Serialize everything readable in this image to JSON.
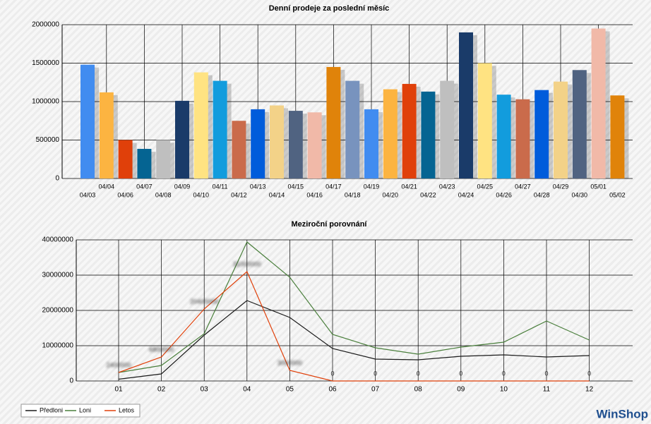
{
  "chart_data": [
    {
      "type": "bar",
      "title": "Denní prodeje za poslední měsíc",
      "categories": [
        "04/03",
        "04/04",
        "04/06",
        "04/07",
        "04/08",
        "04/09",
        "04/10",
        "04/11",
        "04/12",
        "04/13",
        "04/14",
        "04/15",
        "04/16",
        "04/17",
        "04/18",
        "04/19",
        "04/20",
        "04/21",
        "04/22",
        "04/23",
        "04/24",
        "04/25",
        "04/26",
        "04/27",
        "04/28",
        "04/29",
        "04/30",
        "05/01",
        "05/02"
      ],
      "values": [
        1480000,
        1120000,
        500000,
        385000,
        500000,
        1010000,
        1380000,
        1270000,
        750000,
        900000,
        950000,
        880000,
        860000,
        1450000,
        1270000,
        900000,
        1160000,
        1230000,
        1130000,
        1270000,
        1900000,
        1500000,
        1090000,
        1030000,
        1150000,
        1260000,
        1410000,
        1950000,
        1080000
      ],
      "colors": [
        "#418cf0",
        "#fcb441",
        "#e0400a",
        "#056492",
        "#bfbfbf",
        "#1a3b69",
        "#ffe382",
        "#129cdd",
        "#ca6b4b",
        "#005cdb",
        "#f3d288",
        "#506381",
        "#f1b9a8",
        "#e0830a",
        "#7893be"
      ],
      "ylim": [
        0,
        2000000
      ],
      "yticks": [
        0,
        500000,
        1000000,
        1500000,
        2000000
      ],
      "grid": true
    },
    {
      "type": "line",
      "title": "Meziroční porovnání",
      "categories": [
        "01",
        "02",
        "03",
        "04",
        "05",
        "06",
        "07",
        "08",
        "09",
        "10",
        "11",
        "12"
      ],
      "series": [
        {
          "name": "Předloni",
          "color": "#1a1a1a",
          "values": [
            500000,
            2000000,
            13000000,
            22800000,
            18000000,
            9200000,
            6200000,
            6000000,
            7000000,
            7400000,
            6800000,
            7200000
          ]
        },
        {
          "name": "Loni",
          "color": "#4a7f3c",
          "values": [
            2400000,
            4400000,
            13400000,
            39400000,
            29400000,
            13200000,
            9400000,
            7600000,
            9600000,
            11000000,
            17000000,
            11600000
          ]
        },
        {
          "name": "Letos",
          "color": "#e0400a",
          "values": [
            2400000,
            6800000,
            20400000,
            31000000,
            3000000,
            0,
            0,
            0,
            0,
            0,
            0,
            0
          ],
          "data_labels": true
        }
      ],
      "ylim": [
        0,
        40000000
      ],
      "yticks": [
        0,
        10000000,
        20000000,
        30000000,
        40000000
      ],
      "grid": true,
      "legend": "bottom-left"
    }
  ],
  "logo": "WinShop"
}
